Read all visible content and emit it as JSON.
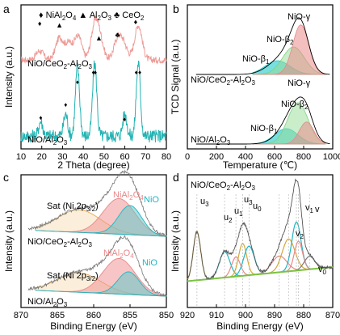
{
  "chart_data": [
    {
      "panel": "a",
      "type": "line",
      "xlabel": "2 Theta (degree)",
      "ylabel": "Intensity (a.u.)",
      "xlim": [
        10,
        80
      ],
      "xticks": [
        10,
        20,
        30,
        40,
        50,
        60,
        70,
        80
      ],
      "legend": [
        "NiAl2O4",
        "Al2O3",
        "CeO2"
      ],
      "legend_symbols": [
        "♦",
        "▲",
        "♣"
      ],
      "series": [
        {
          "name": "NiO/CeO2-Al2O3",
          "color": "#ee9b97",
          "peaks": [
            [
              19,
              0.25
            ],
            [
              28.5,
              0.6
            ],
            [
              33,
              0.45
            ],
            [
              37.5,
              0.65
            ],
            [
              45.5,
              0.9
            ],
            [
              48,
              0.5
            ],
            [
              56.5,
              0.55
            ],
            [
              59.5,
              0.4
            ],
            [
              66.5,
              0.95
            ]
          ]
        },
        {
          "name": "NiO/Al2O3",
          "color": "#22b3b3",
          "peaks": [
            [
              19.5,
              0.2
            ],
            [
              31.5,
              0.3
            ],
            [
              37.2,
              0.95
            ],
            [
              45.5,
              1.0
            ],
            [
              60,
              0.3
            ],
            [
              66.5,
              1.0
            ]
          ]
        }
      ],
      "markers": {
        "top": [
          [
            "♦",
            19
          ],
          [
            "▲",
            28.5
          ],
          [
            "▲",
            47.5
          ],
          [
            "♣",
            56.5
          ],
          [
            "♦",
            65.2
          ]
        ],
        "bottom": [
          [
            "♦",
            19.5
          ],
          [
            "♦",
            31.5
          ],
          [
            "♦",
            37.2
          ],
          [
            "♦",
            44.8
          ],
          [
            "♦",
            45.8
          ],
          [
            "♦",
            59.8
          ],
          [
            "♦",
            65.5
          ],
          [
            "♦",
            67.2
          ]
        ]
      }
    },
    {
      "panel": "b",
      "type": "area",
      "xlabel": "Temperature (℃)",
      "ylabel": "TCD Signal (a.u.)",
      "xlim": [
        0,
        1000
      ],
      "xticks": [
        0,
        200,
        400,
        600,
        800,
        1000
      ],
      "series": [
        {
          "name": "NiO/CeO2-Al2O3",
          "components": [
            {
              "name": "NiO-γ",
              "center": 780,
              "width": 55,
              "amp": 0.9
            },
            {
              "name": "NiO-β2",
              "center": 730,
              "width": 75,
              "amp": 0.5
            },
            {
              "name": "NiO-β1",
              "center": 620,
              "width": 85,
              "amp": 0.25
            }
          ]
        },
        {
          "name": "NiO/Al2O3",
          "components": [
            {
              "name": "NiO-γ",
              "center": 820,
              "width": 50,
              "amp": 0.4
            },
            {
              "name": "NiO-β2",
              "center": 760,
              "width": 70,
              "amp": 0.75
            },
            {
              "name": "NiO-β1",
              "center": 680,
              "width": 80,
              "amp": 0.28
            }
          ]
        }
      ]
    },
    {
      "panel": "c",
      "type": "area",
      "xlabel": "Binding Energy (eV)",
      "ylabel": "Intensity (a.u.)",
      "xlim": [
        870,
        850
      ],
      "xticks": [
        870,
        865,
        860,
        855,
        850
      ],
      "series": [
        {
          "name": "NiO/CeO2-Al2O3",
          "components": [
            {
              "name": "Sat (Ni 2p3/2)",
              "center": 862,
              "width": 3.0,
              "amp": 0.35
            },
            {
              "name": "NiAl2O4",
              "center": 856.5,
              "width": 2.2,
              "amp": 0.55
            },
            {
              "name": "NiO",
              "center": 855.0,
              "width": 1.6,
              "amp": 0.45
            }
          ]
        },
        {
          "name": "NiO/Al2O3",
          "components": [
            {
              "name": "Sat (Ni 2p3/2)",
              "center": 862,
              "width": 3.0,
              "amp": 0.3
            },
            {
              "name": "NiAl2O4",
              "center": 856.5,
              "width": 2.2,
              "amp": 0.55
            },
            {
              "name": "NiO",
              "center": 855.2,
              "width": 1.5,
              "amp": 0.35
            }
          ]
        }
      ]
    },
    {
      "panel": "d",
      "type": "area",
      "title": "NiO/CeO2-Al2O3",
      "xlabel": "Binding Energy (eV)",
      "ylabel": "Intensity (a.u.)",
      "xlim": [
        920,
        870
      ],
      "xticks": [
        920,
        910,
        900,
        890,
        880,
        870
      ],
      "peak_labels": [
        "u3",
        "u2",
        "u1",
        "u0",
        "u0",
        "v3",
        "v2",
        "v1",
        "v",
        "v0"
      ],
      "components": [
        {
          "name": "u3",
          "center": 916.7,
          "width": 1.3,
          "amp": 0.75
        },
        {
          "name": "u2",
          "center": 907.2,
          "width": 1.8,
          "amp": 0.4
        },
        {
          "name": "u1",
          "center": 903.3,
          "width": 1.5,
          "amp": 0.3
        },
        {
          "name": "u0",
          "center": 901.0,
          "width": 1.4,
          "amp": 0.5
        },
        {
          "name": "u0",
          "center": 898.8,
          "width": 1.8,
          "amp": 0.45
        },
        {
          "name": "v3",
          "center": 888.4,
          "width": 2.6,
          "amp": 0.25
        },
        {
          "name": "v2",
          "center": 885.2,
          "width": 2.2,
          "amp": 0.5
        },
        {
          "name": "v1",
          "center": 882.5,
          "width": 1.6,
          "amp": 0.75
        },
        {
          "name": "v",
          "center": 881.8,
          "width": 1.4,
          "amp": 0.45
        },
        {
          "name": "v0",
          "center": 878.0,
          "width": 1.8,
          "amp": 0.2
        }
      ]
    }
  ]
}
